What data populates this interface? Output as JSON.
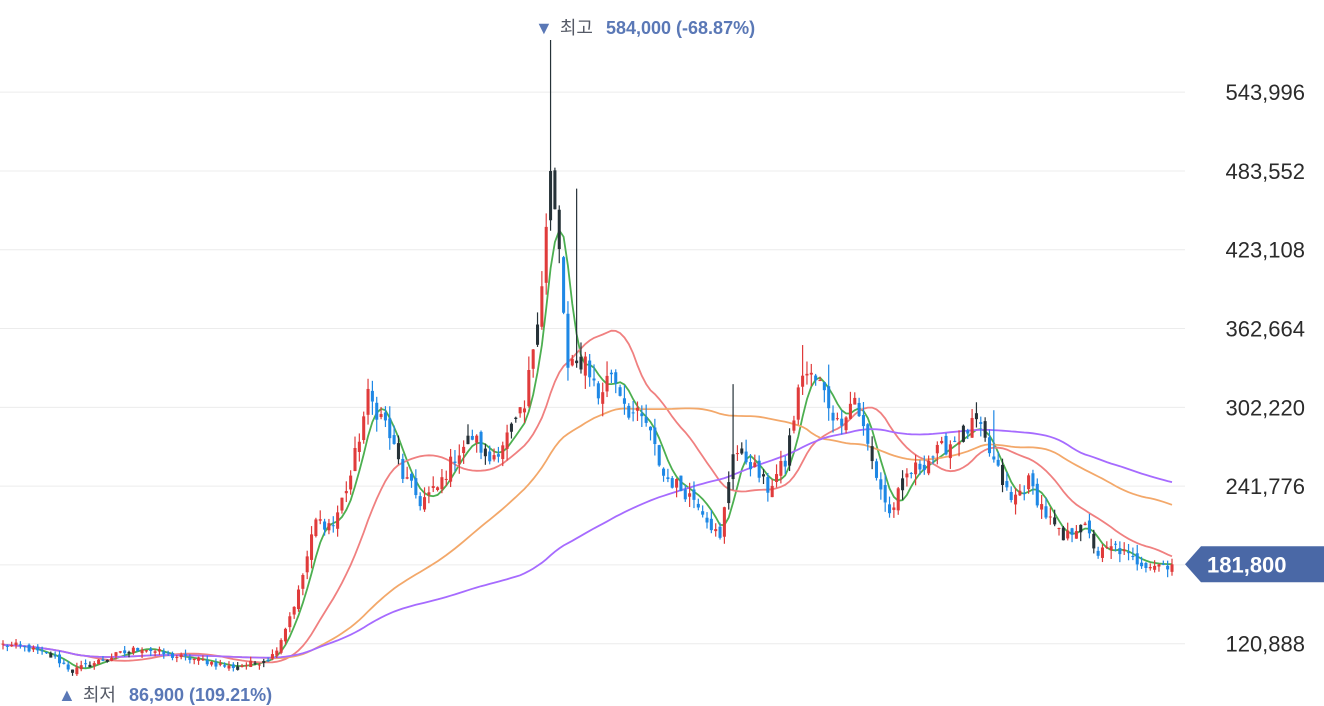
{
  "chart_data": {
    "type": "candlestick",
    "y_ticks": [
      120888,
      181332,
      241776,
      302220,
      362664,
      423108,
      483552,
      543996
    ],
    "y_tick_labels": [
      "120,888",
      "",
      "241,776",
      "302,220",
      "362,664",
      "423,108",
      "483,552",
      "543,996"
    ],
    "ylim": [
      82000,
      600000
    ],
    "grid": true,
    "high": {
      "arrow": "▼",
      "word": "최고",
      "value": "584,000 (-68.87%)"
    },
    "low": {
      "arrow": "▲",
      "word": "최저",
      "value": "86,900 (109.21%)"
    },
    "current": {
      "label": "181,800",
      "value": 181800
    },
    "candle_count": 270,
    "close_anchors": [
      [
        0,
        120000
      ],
      [
        5,
        118000
      ],
      [
        12,
        110000
      ],
      [
        16,
        100000
      ],
      [
        20,
        105000
      ],
      [
        26,
        112000
      ],
      [
        32,
        118000
      ],
      [
        38,
        112000
      ],
      [
        46,
        108000
      ],
      [
        52,
        103000
      ],
      [
        58,
        106000
      ],
      [
        62,
        112000
      ],
      [
        64,
        125000
      ],
      [
        68,
        160000
      ],
      [
        72,
        215000
      ],
      [
        76,
        212000
      ],
      [
        80,
        250000
      ],
      [
        84,
        310000
      ],
      [
        88,
        290000
      ],
      [
        92,
        250000
      ],
      [
        96,
        230000
      ],
      [
        100,
        240000
      ],
      [
        104,
        265000
      ],
      [
        108,
        280000
      ],
      [
        112,
        262000
      ],
      [
        116,
        280000
      ],
      [
        120,
        300000
      ],
      [
        124,
        400000
      ],
      [
        126,
        480000
      ],
      [
        128,
        420000
      ],
      [
        130,
        330000
      ],
      [
        134,
        340000
      ],
      [
        137,
        310000
      ],
      [
        140,
        330000
      ],
      [
        144,
        300000
      ],
      [
        148,
        290000
      ],
      [
        152,
        250000
      ],
      [
        156,
        240000
      ],
      [
        160,
        230000
      ],
      [
        165,
        200000
      ],
      [
        168,
        270000
      ],
      [
        172,
        260000
      ],
      [
        176,
        240000
      ],
      [
        180,
        260000
      ],
      [
        184,
        330000
      ],
      [
        188,
        320000
      ],
      [
        192,
        290000
      ],
      [
        196,
        310000
      ],
      [
        200,
        260000
      ],
      [
        204,
        220000
      ],
      [
        208,
        250000
      ],
      [
        212,
        260000
      ],
      [
        216,
        270000
      ],
      [
        220,
        280000
      ],
      [
        224,
        290000
      ],
      [
        228,
        260000
      ],
      [
        232,
        230000
      ],
      [
        236,
        245000
      ],
      [
        240,
        220000
      ],
      [
        244,
        200000
      ],
      [
        248,
        215000
      ],
      [
        252,
        190000
      ],
      [
        256,
        195000
      ],
      [
        260,
        185000
      ],
      [
        264,
        182000
      ],
      [
        269,
        181800
      ]
    ],
    "spikes": [
      [
        126,
        584000
      ],
      [
        132,
        470000
      ],
      [
        168,
        320000
      ],
      [
        184,
        350000
      ],
      [
        190,
        335000
      ],
      [
        228,
        300000
      ]
    ],
    "series": [
      {
        "window": 5,
        "color": "#4caf50"
      },
      {
        "window": 20,
        "color": "#f08080"
      },
      {
        "window": 60,
        "color": "#f3a86a"
      },
      {
        "window": 120,
        "color": "#a66bff"
      }
    ],
    "colors": {
      "up": "#e03b3b",
      "down": "#1e88e5",
      "neutral": "#263238",
      "grid": "#ececec",
      "badge": "#4a68a6"
    }
  }
}
